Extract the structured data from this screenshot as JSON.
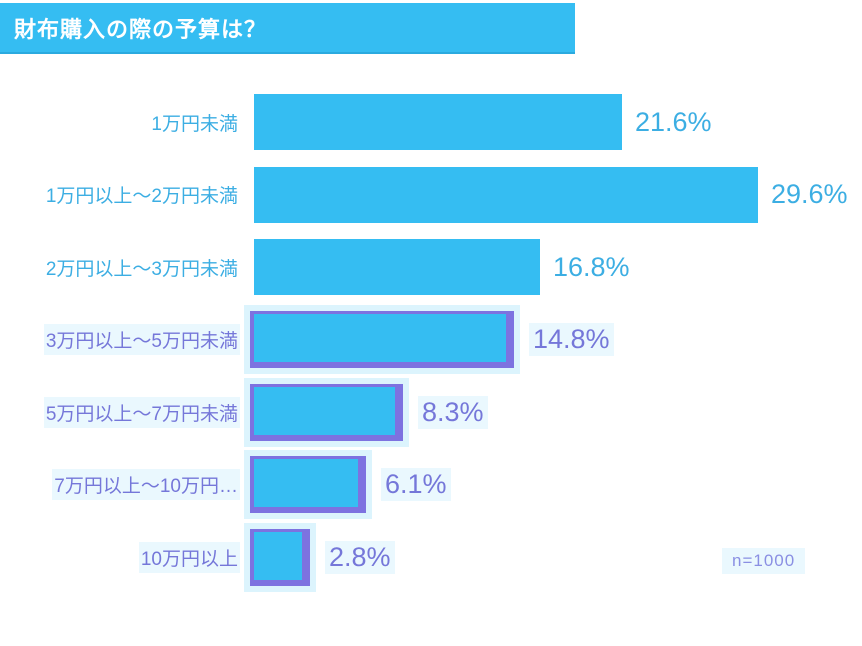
{
  "title": {
    "text": "財布購入の際の予算は？"
  },
  "footnote": {
    "text": "n=1000"
  },
  "colors": {
    "bar": "#35BDF2",
    "title_bg": "#35BDF2",
    "title_text": "#FFFFFF",
    "text_blue": "#3CAEE3",
    "text_purple": "#7577D9",
    "highlight_outline": "#7D72E0",
    "highlight_glow": "#DCF4FD",
    "highlight_text_bg": "#EAF8FE"
  },
  "chart_data": {
    "type": "bar",
    "orientation": "horizontal",
    "title": "財布購入の際の予算は？",
    "categories": [
      "1万円未満",
      "1万円以上～2万円未満",
      "2万円以上～3万円未満",
      "3万円以上～5万円未満",
      "5万円以上～7万円未満",
      "7万円以上～10万円…",
      "10万円以上"
    ],
    "values": [
      21.6,
      29.6,
      16.8,
      14.8,
      8.3,
      6.1,
      2.8
    ],
    "value_labels": [
      "21.6%",
      "29.6%",
      "16.8%",
      "14.8%",
      "8.3%",
      "6.1%",
      "2.8%"
    ],
    "highlighted": [
      false,
      false,
      false,
      true,
      true,
      true,
      true
    ],
    "unit": "%",
    "xlim": [
      0,
      30
    ],
    "grid": false,
    "legend": false,
    "sample_size": "n=1000"
  }
}
